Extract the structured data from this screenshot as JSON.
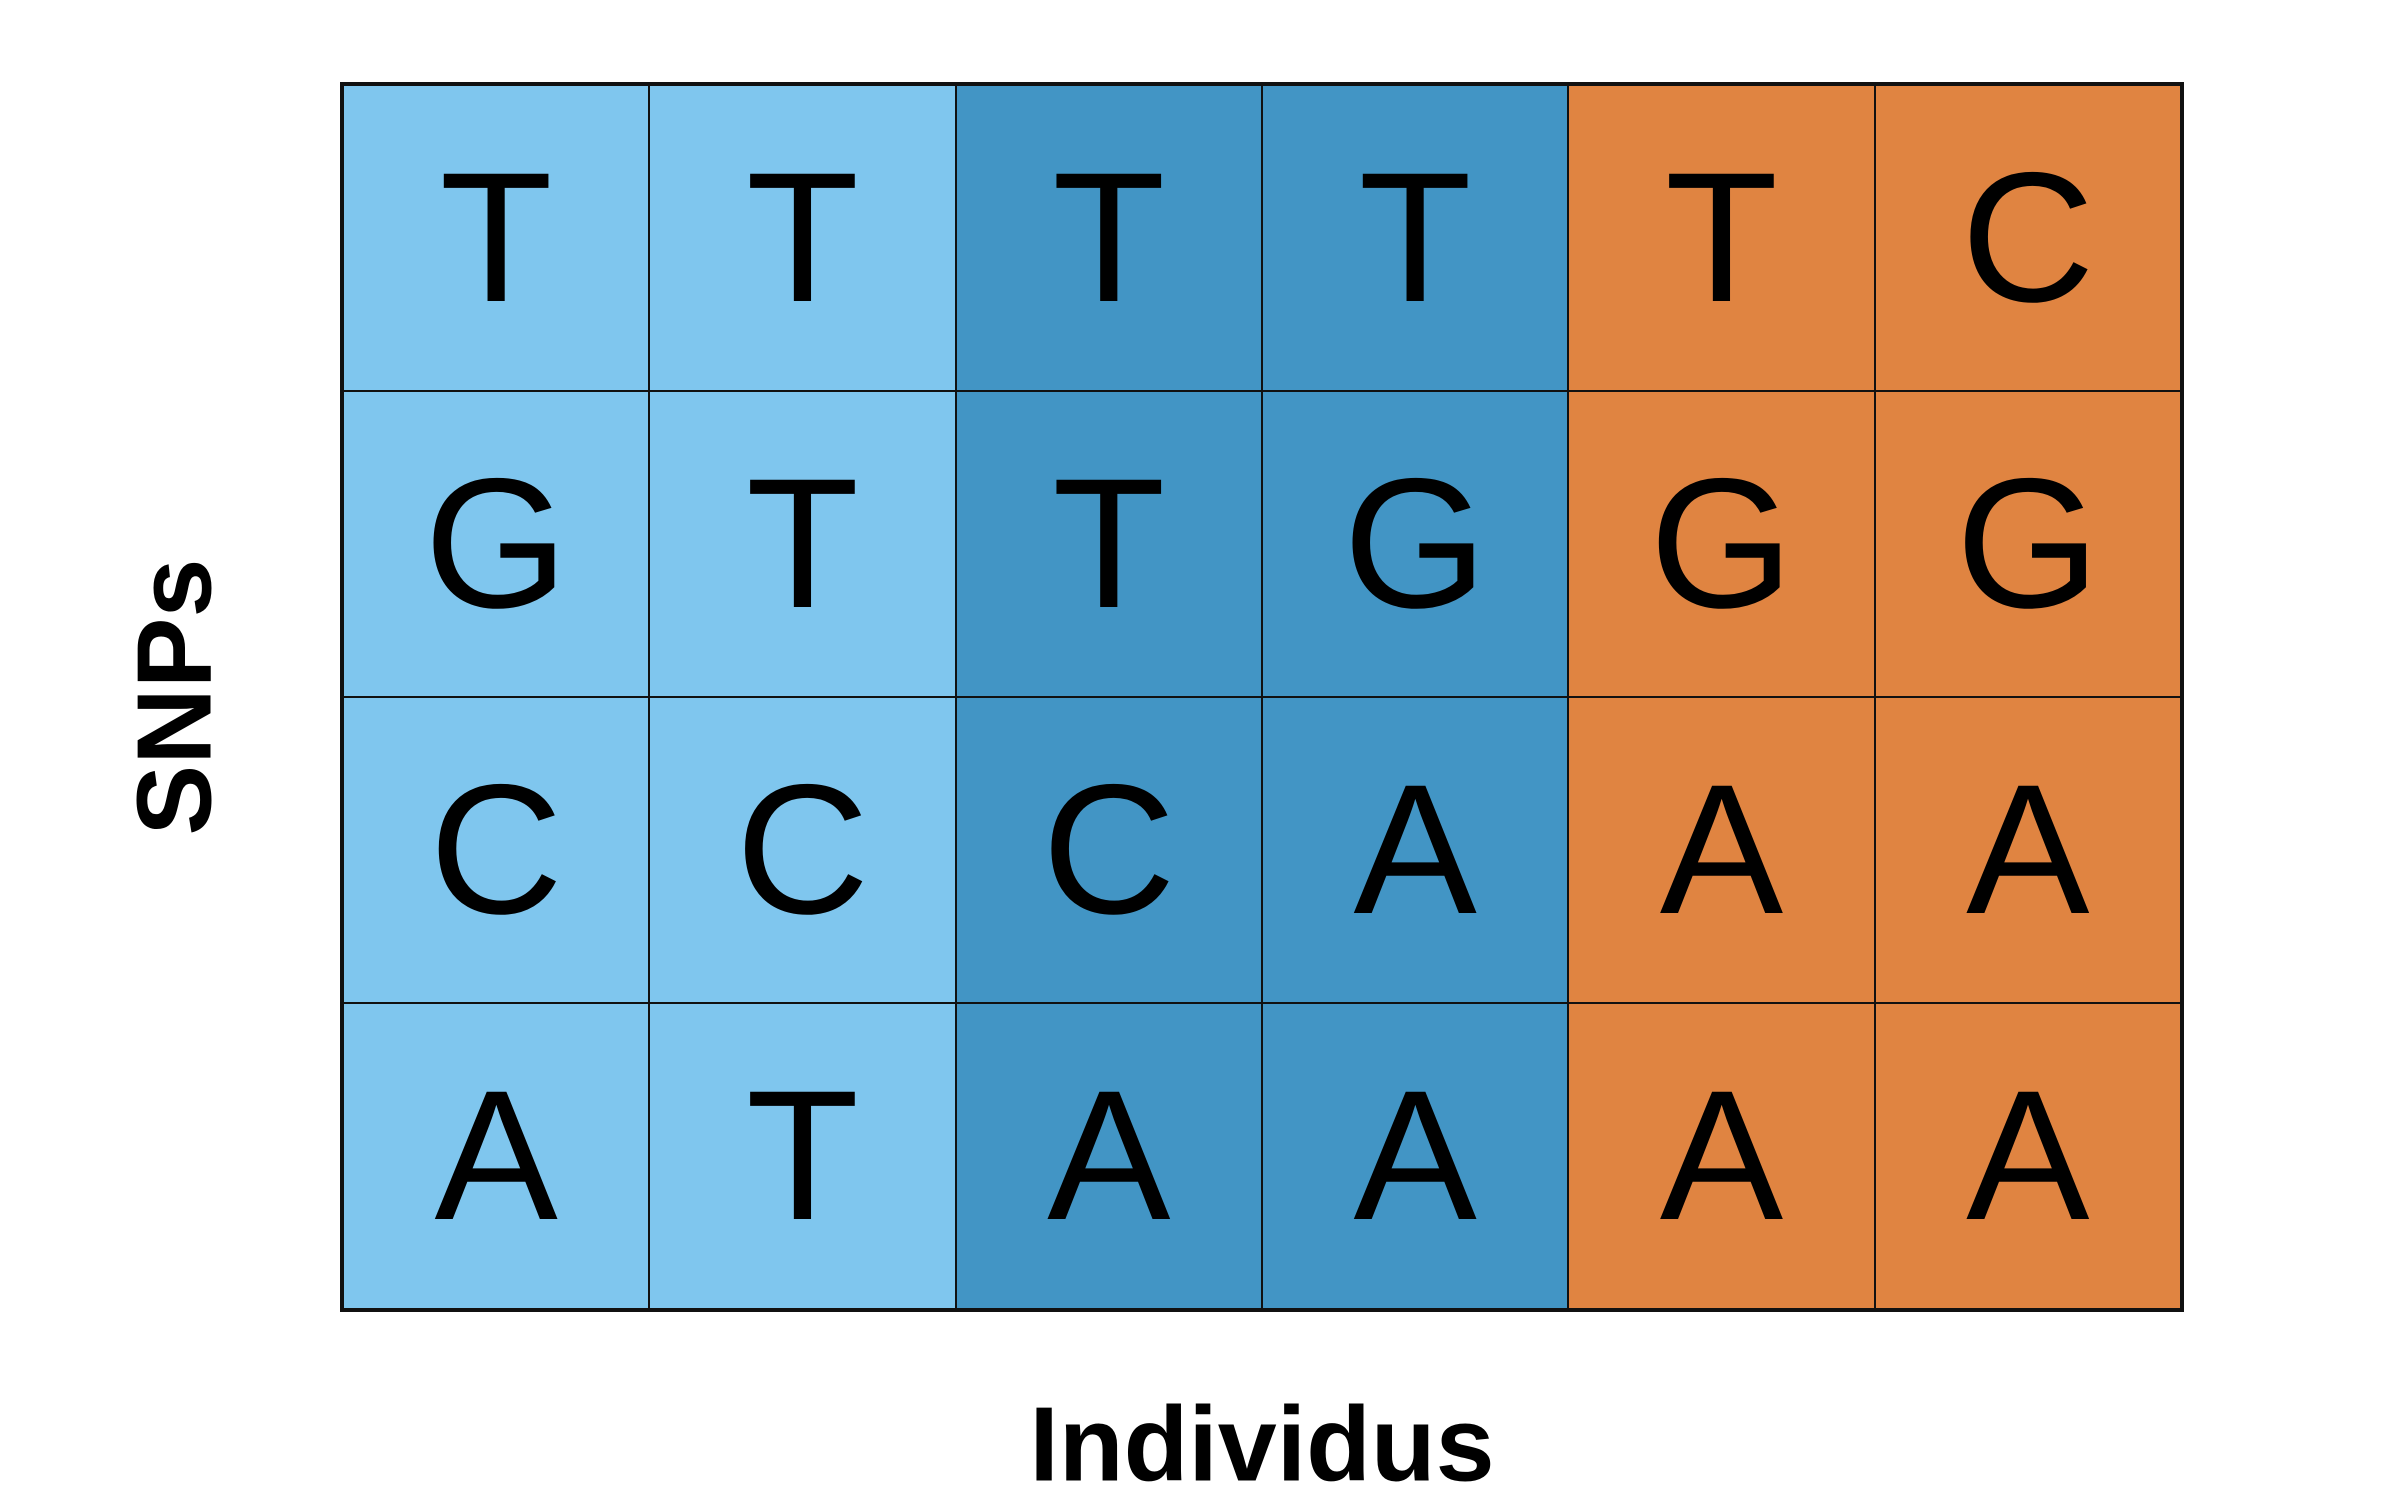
{
  "diagram": {
    "xlabel": "Individus",
    "ylabel": "SNPs",
    "group_colors": [
      "#7fc6ee",
      "#4295c5",
      "#e08441"
    ],
    "column_groups": [
      0,
      0,
      1,
      1,
      2,
      2
    ],
    "rows": [
      [
        "T",
        "T",
        "T",
        "T",
        "T",
        "C"
      ],
      [
        "G",
        "T",
        "T",
        "G",
        "G",
        "G"
      ],
      [
        "C",
        "C",
        "C",
        "A",
        "A",
        "A"
      ],
      [
        "A",
        "T",
        "A",
        "A",
        "A",
        "A"
      ]
    ]
  }
}
